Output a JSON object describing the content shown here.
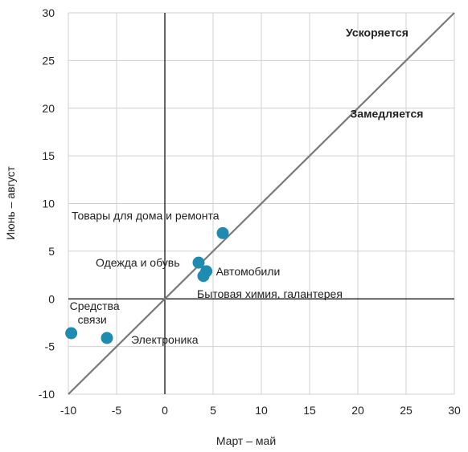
{
  "chart_data": {
    "type": "scatter",
    "title": "",
    "xlabel": "Март – май",
    "ylabel": "Июнь – август",
    "xlim": [
      -10,
      30
    ],
    "ylim": [
      -10,
      30
    ],
    "xticks": [
      -10,
      -5,
      0,
      5,
      10,
      15,
      20,
      25,
      30
    ],
    "yticks": [
      -10,
      -5,
      0,
      5,
      10,
      15,
      20,
      25,
      30
    ],
    "grid": true,
    "reference_line": "y = x",
    "colors": {
      "point": "#1f8bb0",
      "diagonal": "#7a7a7a",
      "grid": "#d0d0d0",
      "axes": "#000000"
    },
    "points": [
      {
        "label": "Товары для дома и ремонта",
        "x": 6.0,
        "y": 6.9
      },
      {
        "label": "Одежда и обувь",
        "x": 3.5,
        "y": 3.8
      },
      {
        "label": "Автомобили",
        "x": 4.3,
        "y": 2.9
      },
      {
        "label": "Бытовая химия, галантерея",
        "x": 4.0,
        "y": 2.4
      },
      {
        "label": "Средства связи",
        "x": -9.7,
        "y": -3.6
      },
      {
        "label": "Электроника",
        "x": -6.0,
        "y": -4.1
      }
    ],
    "annotations": [
      {
        "text": "Ускоряется",
        "x": 22.0,
        "y": 27.5
      },
      {
        "text": "Замедляется",
        "x": 23.0,
        "y": 19.0
      }
    ]
  }
}
